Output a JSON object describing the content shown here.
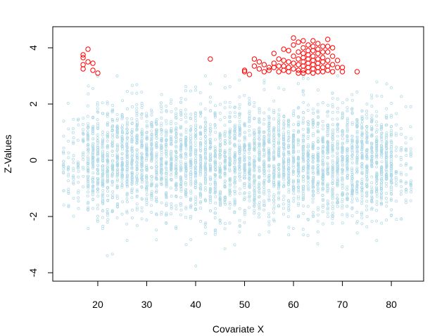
{
  "chart_data": {
    "type": "scatter",
    "title": "",
    "xlabel": "Covariate X",
    "ylabel": "Z-Values",
    "xlim": [
      10.8,
      86.6
    ],
    "ylim": [
      -4.3,
      4.75
    ],
    "x_ticks": [
      20,
      30,
      40,
      50,
      60,
      70,
      80
    ],
    "y_ticks": [
      -4,
      -2,
      0,
      2,
      4
    ],
    "grid": false,
    "legend": "none",
    "colors": {
      "background": "#ffffff",
      "axis": "#000000",
      "null_points": "#ADD8E6",
      "signal_points": "#FF0000"
    },
    "series": [
      {
        "color": "#ADD8E6",
        "marker": "small open circle",
        "description_values": {
          "x_range": [
            13,
            84
          ],
          "x_step": 1,
          "bulk_y_range": [
            -2,
            2
          ],
          "tail_y_range": [
            -4,
            3
          ]
        }
      },
      {
        "color": "#FF0000",
        "marker": "open circle",
        "points": [
          [
            17,
            3.75
          ],
          [
            17,
            3.65
          ],
          [
            17,
            3.4
          ],
          [
            17,
            3.25
          ],
          [
            18,
            3.95
          ],
          [
            18,
            3.5
          ],
          [
            19,
            3.45
          ],
          [
            19,
            3.2
          ],
          [
            20,
            3.1
          ],
          [
            43,
            3.6
          ],
          [
            50,
            3.2
          ],
          [
            50,
            3.15
          ],
          [
            51,
            3.05
          ],
          [
            52,
            3.6
          ],
          [
            52,
            3.35
          ],
          [
            53,
            3.25
          ],
          [
            53,
            3.5
          ],
          [
            54,
            3.15
          ],
          [
            54,
            3.4
          ],
          [
            55,
            3.3
          ],
          [
            55,
            3.2
          ],
          [
            56,
            3.8
          ],
          [
            56,
            3.45
          ],
          [
            56,
            3.3
          ],
          [
            57,
            3.6
          ],
          [
            57,
            3.35
          ],
          [
            57,
            3.15
          ],
          [
            58,
            3.95
          ],
          [
            58,
            3.55
          ],
          [
            58,
            3.35
          ],
          [
            58,
            3.2
          ],
          [
            59,
            3.9
          ],
          [
            59,
            3.5
          ],
          [
            59,
            3.3
          ],
          [
            59,
            3.15
          ],
          [
            60,
            4.35
          ],
          [
            60,
            4.1
          ],
          [
            60,
            3.7
          ],
          [
            60,
            3.45
          ],
          [
            60,
            3.25
          ],
          [
            61,
            4.2
          ],
          [
            61,
            3.85
          ],
          [
            61,
            3.6
          ],
          [
            61,
            3.4
          ],
          [
            61,
            3.2
          ],
          [
            61,
            3.1
          ],
          [
            62,
            4.25
          ],
          [
            62,
            4.0
          ],
          [
            62,
            3.8
          ],
          [
            62,
            3.65
          ],
          [
            62,
            3.5
          ],
          [
            62,
            3.35
          ],
          [
            62,
            3.2
          ],
          [
            62,
            3.1
          ],
          [
            63,
            4.1
          ],
          [
            63,
            3.9
          ],
          [
            63,
            3.75
          ],
          [
            63,
            3.6
          ],
          [
            63,
            3.45
          ],
          [
            63,
            3.3
          ],
          [
            63,
            3.15
          ],
          [
            64,
            4.25
          ],
          [
            64,
            4.05
          ],
          [
            64,
            3.9
          ],
          [
            64,
            3.7
          ],
          [
            64,
            3.55
          ],
          [
            64,
            3.4
          ],
          [
            64,
            3.25
          ],
          [
            64,
            3.1
          ],
          [
            65,
            4.15
          ],
          [
            65,
            3.95
          ],
          [
            65,
            3.8
          ],
          [
            65,
            3.6
          ],
          [
            65,
            3.45
          ],
          [
            65,
            3.3
          ],
          [
            65,
            3.15
          ],
          [
            66,
            4.05
          ],
          [
            66,
            3.85
          ],
          [
            66,
            3.65
          ],
          [
            66,
            3.5
          ],
          [
            66,
            3.3
          ],
          [
            66,
            3.15
          ],
          [
            67,
            4.3
          ],
          [
            67,
            4.05
          ],
          [
            67,
            3.85
          ],
          [
            67,
            3.55
          ],
          [
            67,
            3.35
          ],
          [
            67,
            3.2
          ],
          [
            68,
            4.0
          ],
          [
            68,
            3.7
          ],
          [
            68,
            3.4
          ],
          [
            68,
            3.15
          ],
          [
            69,
            3.55
          ],
          [
            69,
            3.3
          ],
          [
            70,
            3.3
          ],
          [
            70,
            3.15
          ],
          [
            73,
            3.15
          ]
        ]
      }
    ]
  }
}
